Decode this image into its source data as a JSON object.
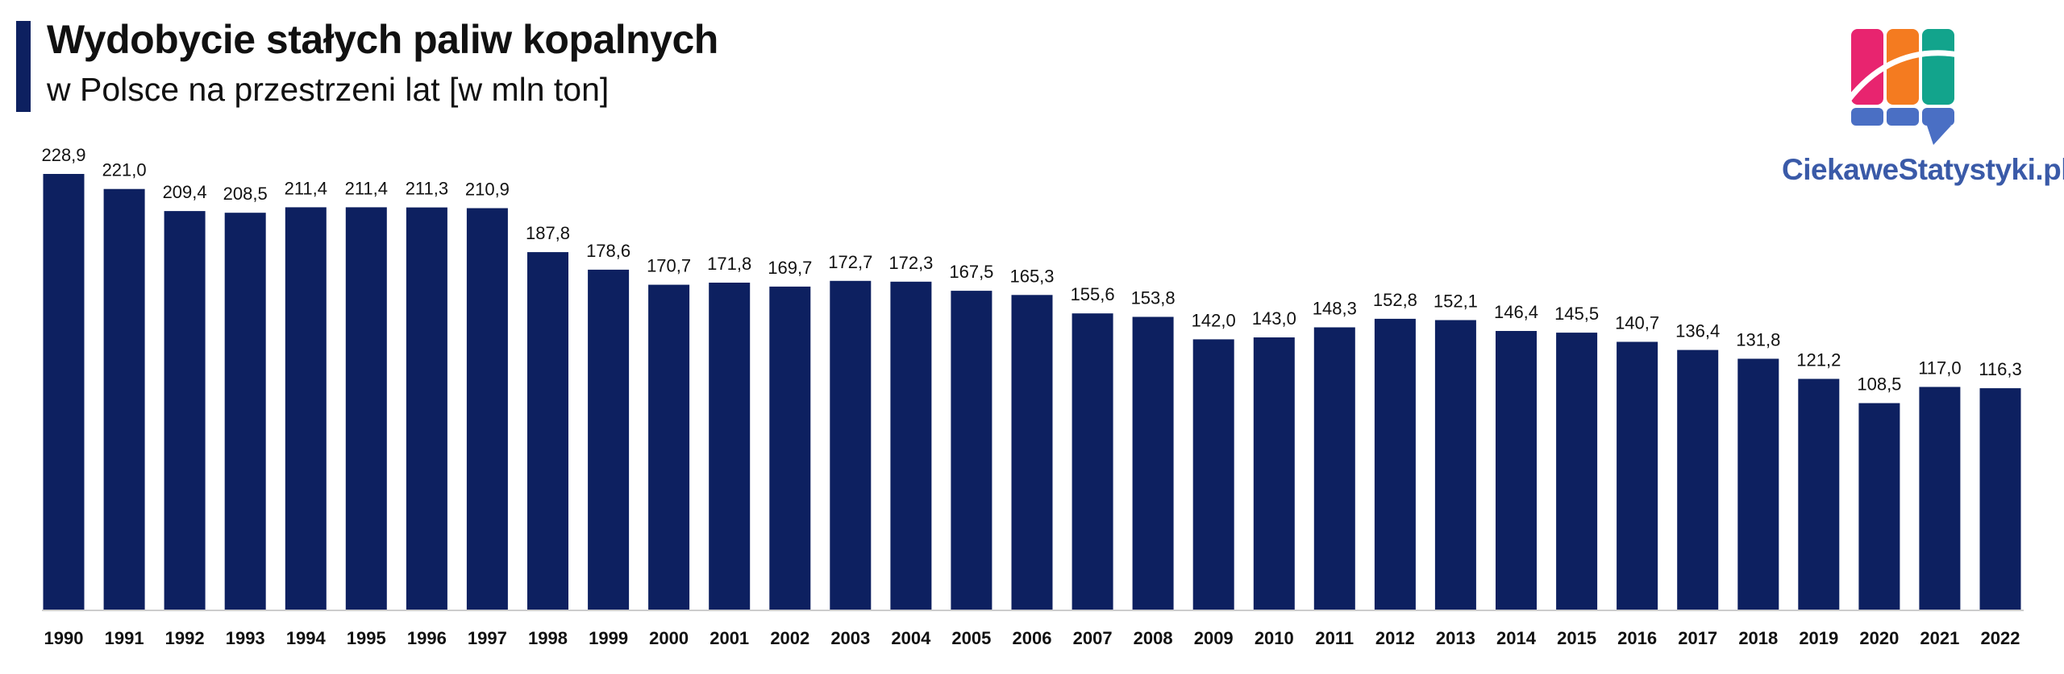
{
  "header": {
    "title": "Wydobycie stałych paliw kopalnych",
    "subtitle": "w Polsce na przestrzeni lat [w mln ton]"
  },
  "brand": {
    "name": "CiekaweStatystyki.pl",
    "logo_colors": [
      "#e8246f",
      "#f47b20",
      "#12a48c",
      "#4a6fc4"
    ],
    "text_color": "#3a5aa8"
  },
  "colors": {
    "bar": "#0d2060",
    "accent": "#0d2060",
    "axis": "#cccccc"
  },
  "chart_data": {
    "type": "bar",
    "categories": [
      "1990",
      "1991",
      "1992",
      "1993",
      "1994",
      "1995",
      "1996",
      "1997",
      "1998",
      "1999",
      "2000",
      "2001",
      "2002",
      "2003",
      "2004",
      "2005",
      "2006",
      "2007",
      "2008",
      "2009",
      "2010",
      "2011",
      "2012",
      "2013",
      "2014",
      "2015",
      "2016",
      "2017",
      "2018",
      "2019",
      "2020",
      "2021",
      "2022"
    ],
    "values": [
      228.9,
      221.0,
      209.4,
      208.5,
      211.4,
      211.4,
      211.3,
      210.9,
      187.8,
      178.6,
      170.7,
      171.8,
      169.7,
      172.7,
      172.3,
      167.5,
      165.3,
      155.6,
      153.8,
      142.0,
      143.0,
      148.3,
      152.8,
      152.1,
      146.4,
      145.5,
      140.7,
      136.4,
      131.8,
      121.2,
      108.5,
      117.0,
      116.3
    ],
    "data_labels": [
      "228,9",
      "221,0",
      "209,4",
      "208,5",
      "211,4",
      "211,4",
      "211,3",
      "210,9",
      "187,8",
      "178,6",
      "170,7",
      "171,8",
      "169,7",
      "172,7",
      "172,3",
      "167,5",
      "165,3",
      "155,6",
      "153,8",
      "142,0",
      "143,0",
      "148,3",
      "152,8",
      "152,1",
      "146,4",
      "145,5",
      "140,7",
      "136,4",
      "131,8",
      "121,2",
      "108,5",
      "117,0",
      "116,3"
    ],
    "title": "Wydobycie stałych paliw kopalnych",
    "subtitle": "w Polsce na przestrzeni lat [w mln ton]",
    "xlabel": "",
    "ylabel": "",
    "ylim": [
      0,
      228.9
    ],
    "grid": false,
    "legend": "none"
  }
}
